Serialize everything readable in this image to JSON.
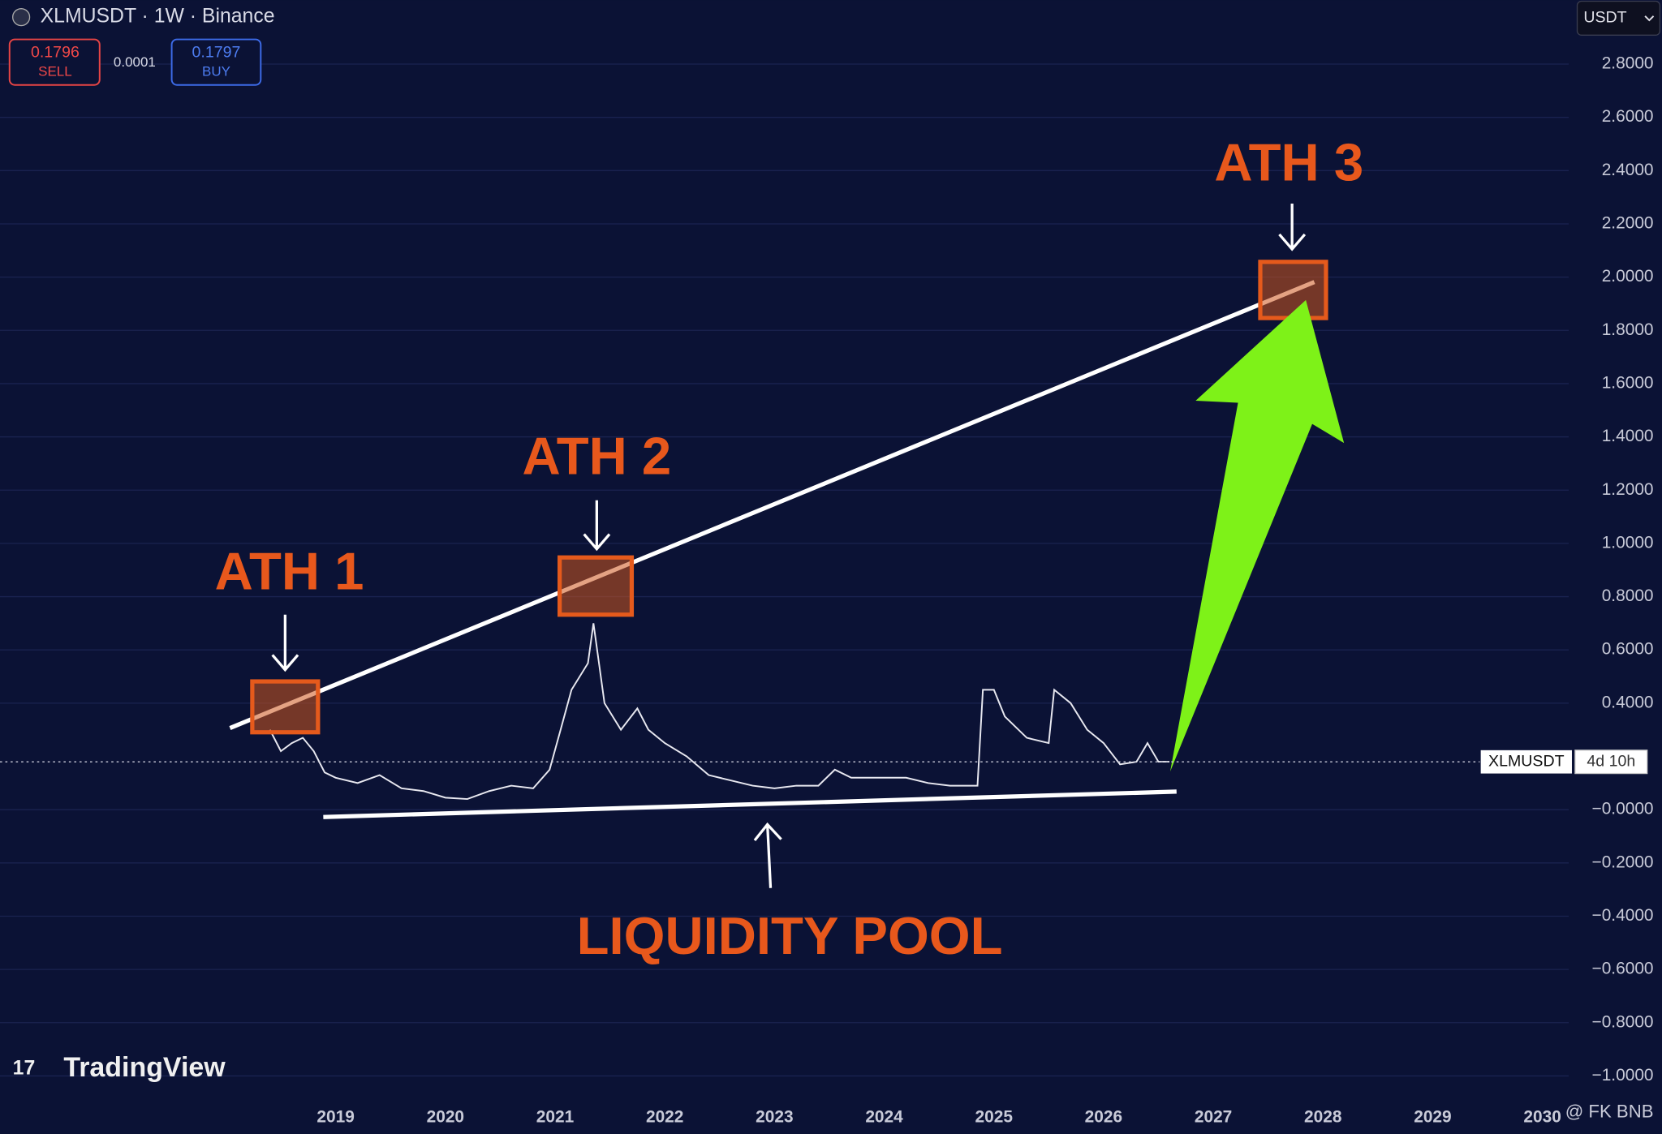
{
  "chart_data": {
    "type": "line",
    "title": "XLMUSDT · 1W · Binance",
    "color": "#e8e8f0",
    "x": [
      2018.4,
      2018.5,
      2018.6,
      2018.7,
      2018.8,
      2018.9,
      2019.0,
      2019.2,
      2019.4,
      2019.6,
      2019.8,
      2020.0,
      2020.2,
      2020.4,
      2020.6,
      2020.8,
      2020.95,
      2021.05,
      2021.15,
      2021.3,
      2021.35,
      2021.45,
      2021.6,
      2021.75,
      2021.85,
      2022.0,
      2022.2,
      2022.4,
      2022.6,
      2022.8,
      2023.0,
      2023.2,
      2023.4,
      2023.55,
      2023.7,
      2023.9,
      2024.2,
      2024.4,
      2024.6,
      2024.85,
      2024.9,
      2025.0,
      2025.1,
      2025.3,
      2025.5,
      2025.55,
      2025.7,
      2025.85,
      2026.0,
      2026.15,
      2026.3,
      2026.4,
      2026.5,
      2026.6
    ],
    "values": [
      0.3,
      0.22,
      0.25,
      0.27,
      0.22,
      0.14,
      0.12,
      0.1,
      0.13,
      0.08,
      0.07,
      0.045,
      0.04,
      0.07,
      0.09,
      0.08,
      0.15,
      0.3,
      0.45,
      0.55,
      0.7,
      0.4,
      0.3,
      0.38,
      0.3,
      0.25,
      0.2,
      0.13,
      0.11,
      0.09,
      0.08,
      0.09,
      0.09,
      0.15,
      0.12,
      0.12,
      0.12,
      0.1,
      0.09,
      0.09,
      0.45,
      0.45,
      0.35,
      0.27,
      0.25,
      0.45,
      0.4,
      0.3,
      0.25,
      0.17,
      0.18,
      0.25,
      0.18,
      0.18
    ],
    "xlim": [
      2015.94,
      2030.24
    ],
    "xticks": [
      2019,
      2020,
      2021,
      2022,
      2023,
      2024,
      2025,
      2026,
      2027,
      2028,
      2029,
      2030
    ],
    "ylim": [
      -1.09,
      3.04
    ],
    "yticks": [
      {
        "value": 2.8,
        "label": "2.8000"
      },
      {
        "value": 2.6,
        "label": "2.6000"
      },
      {
        "value": 2.4,
        "label": "2.4000"
      },
      {
        "value": 2.2,
        "label": "2.2000"
      },
      {
        "value": 2.0,
        "label": "2.0000"
      },
      {
        "value": 1.8,
        "label": "1.8000"
      },
      {
        "value": 1.6,
        "label": "1.6000"
      },
      {
        "value": 1.4,
        "label": "1.4000"
      },
      {
        "value": 1.2,
        "label": "1.2000"
      },
      {
        "value": 1.0,
        "label": "1.0000"
      },
      {
        "value": 0.8,
        "label": "0.8000"
      },
      {
        "value": 0.6,
        "label": "0.6000"
      },
      {
        "value": 0.4,
        "label": "0.4000"
      },
      {
        "value": 0,
        "label": "−0.0000"
      },
      {
        "value": -0.2,
        "label": "−0.2000"
      },
      {
        "value": -0.4,
        "label": "−0.4000"
      },
      {
        "value": -0.6,
        "label": "−0.6000"
      },
      {
        "value": -0.8,
        "label": "−0.8000"
      },
      {
        "value": -1.0,
        "label": "−1.0000"
      }
    ],
    "grid": true,
    "last_value": 0.1796,
    "last_symbol": "XLMUSDT",
    "countdown": "4d 10h",
    "annotations": [
      "ATH 1",
      "ATH 2",
      "ATH 3",
      "LIQUIDITY POOL"
    ]
  },
  "order_panel": {
    "sell_price": "0.1796",
    "sell_label": "SELL",
    "spread": "0.0001",
    "buy_price": "0.1797",
    "buy_label": "BUY"
  },
  "currency": "USDT",
  "brand": "TradingView",
  "watermark": "@ FK BNB"
}
